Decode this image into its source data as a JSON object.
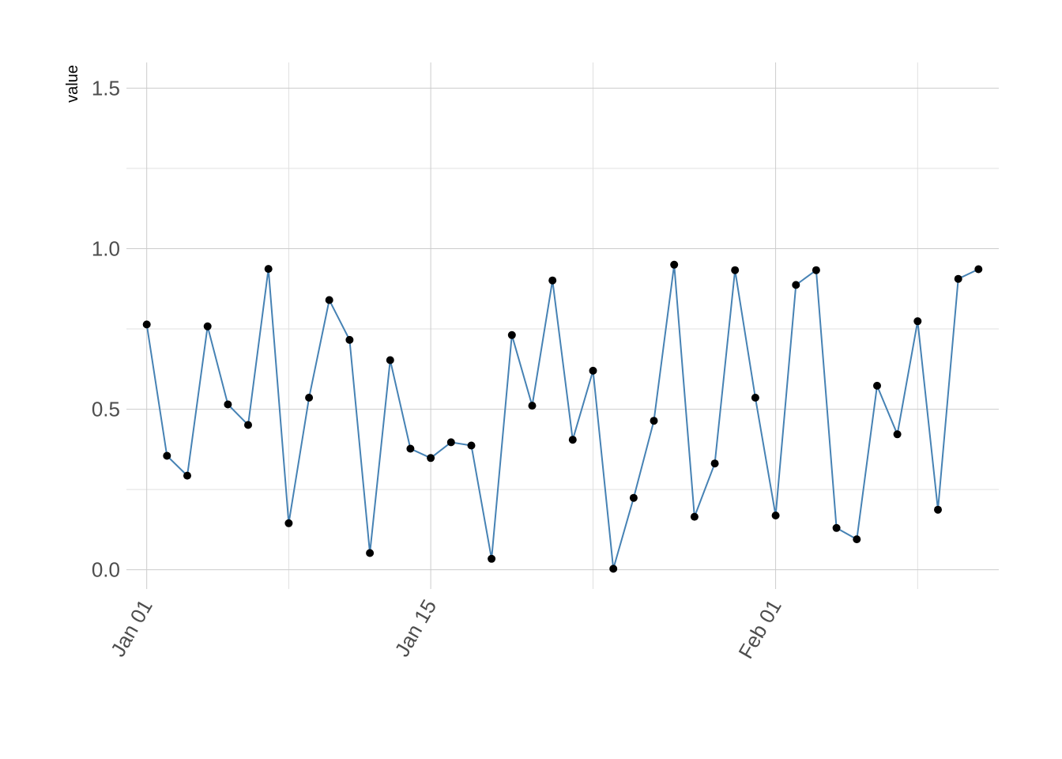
{
  "chart_data": {
    "type": "line",
    "title": "",
    "xlabel": "",
    "ylabel": "value",
    "ylim": [
      -0.06,
      1.58
    ],
    "xlim": [
      "2021-12-31",
      "2022-02-12"
    ],
    "y_ticks": [
      0.0,
      0.5,
      1.0,
      1.5
    ],
    "y_tick_labels": [
      "0.0",
      "0.5",
      "1.0",
      "1.5"
    ],
    "y_minor_ticks": [
      0.25,
      0.75,
      1.25
    ],
    "x_ticks": [
      "2022-01-01",
      "2022-01-15",
      "2022-02-01"
    ],
    "x_tick_labels": [
      "Jan 01",
      "Jan 15",
      "Feb 01"
    ],
    "x_minor_ticks": [
      "2022-01-08",
      "2022-01-23",
      "2022-02-08"
    ],
    "grid": true,
    "legend": "none",
    "line_color": "#4682B4",
    "point_color": "#000000",
    "x": [
      "2022-01-01",
      "2022-01-02",
      "2022-01-03",
      "2022-01-04",
      "2022-01-05",
      "2022-01-06",
      "2022-01-07",
      "2022-01-08",
      "2022-01-09",
      "2022-01-10",
      "2022-01-11",
      "2022-01-12",
      "2022-01-13",
      "2022-01-14",
      "2022-01-15",
      "2022-01-16",
      "2022-01-17",
      "2022-01-18",
      "2022-01-19",
      "2022-01-20",
      "2022-01-21",
      "2022-01-22",
      "2022-01-23",
      "2022-01-24",
      "2022-01-25",
      "2022-01-26",
      "2022-01-27",
      "2022-01-28",
      "2022-01-29",
      "2022-01-30",
      "2022-01-31",
      "2022-02-01",
      "2022-02-02",
      "2022-02-03",
      "2022-02-04",
      "2022-02-05",
      "2022-02-06",
      "2022-02-07",
      "2022-02-08",
      "2022-02-09",
      "2022-02-10",
      "2022-02-11"
    ],
    "values": [
      0.764,
      0.355,
      0.293,
      0.758,
      0.515,
      0.451,
      0.937,
      0.145,
      0.536,
      0.84,
      0.716,
      0.052,
      0.653,
      0.377,
      0.348,
      0.397,
      0.387,
      0.034,
      0.731,
      0.511,
      0.901,
      0.405,
      0.62,
      0.003,
      0.224,
      0.464,
      0.95,
      0.165,
      0.331,
      0.933,
      0.536,
      0.169,
      0.887,
      0.933,
      0.13,
      0.095,
      0.573,
      0.422,
      0.774,
      0.187,
      0.906,
      0.936
    ]
  }
}
